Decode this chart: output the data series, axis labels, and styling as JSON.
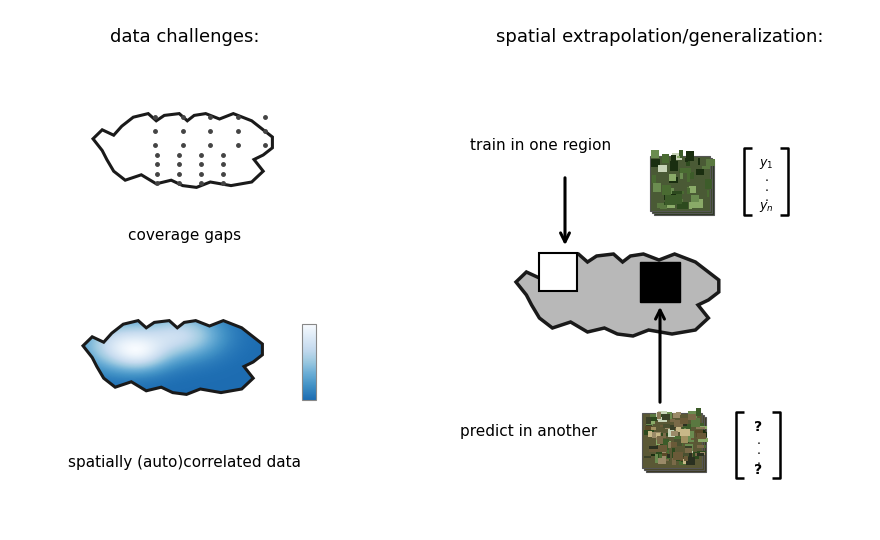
{
  "bg_color": "#ffffff",
  "title_left": "data challenges:",
  "title_right": "spatial extrapolation/generalization:",
  "label_coverage": "coverage gaps",
  "label_autocorr": "spatially (auto)correlated data",
  "label_train": "train in one region",
  "label_predict": "predict in another",
  "shape_fill_left": "#ffffff",
  "shape_fill_right": "#b8b8b8",
  "shape_outline": "#1a1a1a",
  "shape_lw": 2.2,
  "dot_color": "#444444",
  "colorbar_cmap": "RdPu",
  "title_fontsize": 13,
  "label_fontsize": 11
}
